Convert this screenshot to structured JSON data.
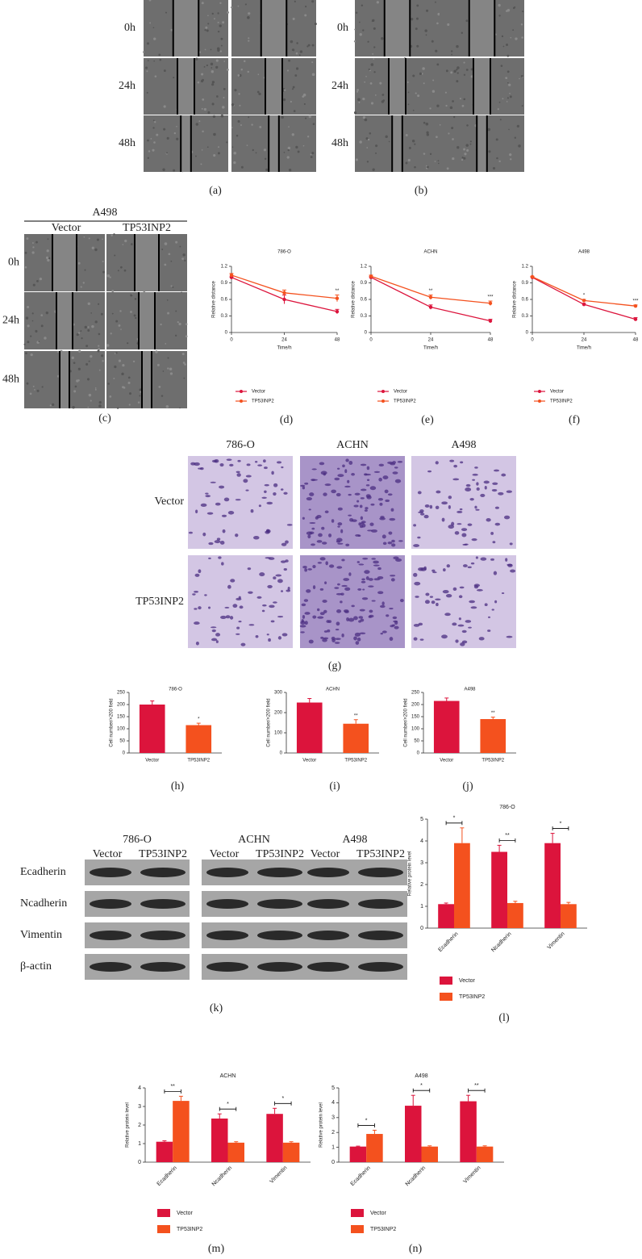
{
  "wound": {
    "a": {
      "rows": [
        "0h",
        "24h",
        "48h"
      ],
      "label": "(a)"
    },
    "b": {
      "rows": [
        "0h",
        "24h",
        "48h"
      ],
      "label": "(b)"
    },
    "c": {
      "title": "A498",
      "columns": [
        "Vector",
        "TP53INP2"
      ],
      "rows": [
        "0h",
        "24h",
        "48h"
      ],
      "label": "(c)"
    }
  },
  "transwell": {
    "columns": [
      "786-O",
      "ACHN",
      "A498"
    ],
    "rows": [
      "Vector",
      "TP53INP2"
    ],
    "label": "(g)"
  },
  "blot": {
    "groups": [
      {
        "title": "786-O",
        "columns": [
          "Vector",
          "TP53INP2"
        ]
      },
      {
        "title": "ACHN",
        "columns": [
          "Vector",
          "TP53INP2"
        ]
      },
      {
        "title": "A498",
        "columns": [
          "Vector",
          "TP53INP2"
        ]
      }
    ],
    "rows": [
      "Ecadherin",
      "Ncadherin",
      "Vimentin",
      "β-actin"
    ],
    "label": "(k)"
  },
  "chart_data": [
    {
      "type": "line",
      "title": "786-O",
      "label": "(d)",
      "xlabel": "Time/h",
      "ylabel": "Relative distance",
      "x": [
        0,
        24,
        48
      ],
      "xlim": [
        0,
        48
      ],
      "xticks": [
        0,
        24,
        48
      ],
      "ylim": [
        0,
        1.2
      ],
      "yticks": [
        0,
        0.3,
        0.6,
        0.9,
        1.2
      ],
      "series": [
        {
          "name": "Vector",
          "color": "#dc143c",
          "values": [
            1.0,
            0.6,
            0.38
          ],
          "errors": [
            0.01,
            0.08,
            0.04
          ]
        },
        {
          "name": "TP53INP2",
          "color": "#f4511e",
          "values": [
            1.04,
            0.72,
            0.62
          ],
          "errors": [
            0.03,
            0.05,
            0.06
          ]
        }
      ],
      "annotations": [
        null,
        null,
        "**"
      ]
    },
    {
      "type": "line",
      "title": "ACHN",
      "label": "(e)",
      "xlabel": "Time/h",
      "ylabel": "Relative distance",
      "x": [
        0,
        24,
        48
      ],
      "xlim": [
        0,
        48
      ],
      "xticks": [
        0,
        24,
        48
      ],
      "ylim": [
        0,
        1.2
      ],
      "yticks": [
        0,
        0.3,
        0.6,
        0.9,
        1.2
      ],
      "series": [
        {
          "name": "Vector",
          "color": "#dc143c",
          "values": [
            1.0,
            0.46,
            0.21
          ],
          "errors": [
            0.01,
            0.04,
            0.03
          ]
        },
        {
          "name": "TP53INP2",
          "color": "#f4511e",
          "values": [
            1.02,
            0.64,
            0.53
          ],
          "errors": [
            0.02,
            0.04,
            0.04
          ]
        }
      ],
      "annotations": [
        null,
        "**",
        "***"
      ]
    },
    {
      "type": "line",
      "title": "A498",
      "label": "(f)",
      "xlabel": "Time/h",
      "ylabel": "Relative distance",
      "x": [
        0,
        24,
        48
      ],
      "xlim": [
        0,
        48
      ],
      "xticks": [
        0,
        24,
        48
      ],
      "ylim": [
        0,
        1.2
      ],
      "yticks": [
        0,
        0.3,
        0.6,
        0.9,
        1.2
      ],
      "series": [
        {
          "name": "Vector",
          "color": "#dc143c",
          "values": [
            1.0,
            0.51,
            0.24
          ],
          "errors": [
            0.01,
            0.02,
            0.03
          ]
        },
        {
          "name": "TP53INP2",
          "color": "#f4511e",
          "values": [
            1.01,
            0.58,
            0.48
          ],
          "errors": [
            0.01,
            0.02,
            0.02
          ]
        }
      ],
      "annotations": [
        null,
        "*",
        "***"
      ]
    },
    {
      "type": "bar",
      "title": "786-O",
      "label": "(h)",
      "ylabel": "Cell number/×200 field",
      "categories": [
        "Vector",
        "TP53INP2"
      ],
      "values": [
        200,
        115
      ],
      "errors": [
        15,
        8
      ],
      "colors": [
        "#dc143c",
        "#f4511e"
      ],
      "ylim": [
        0,
        250
      ],
      "yticks": [
        0,
        50,
        100,
        150,
        200,
        250
      ],
      "annotations": [
        null,
        "*"
      ]
    },
    {
      "type": "bar",
      "title": "ACHN",
      "label": "(i)",
      "ylabel": "Cell number/×200 field",
      "categories": [
        "Vector",
        "TP53INP2"
      ],
      "values": [
        250,
        145
      ],
      "errors": [
        20,
        20
      ],
      "colors": [
        "#dc143c",
        "#f4511e"
      ],
      "ylim": [
        0,
        300
      ],
      "yticks": [
        0,
        100,
        200,
        300
      ],
      "annotations": [
        null,
        "**"
      ]
    },
    {
      "type": "bar",
      "title": "A498",
      "label": "(j)",
      "ylabel": "Cell number/×200 field",
      "categories": [
        "Vector",
        "TP53INP2"
      ],
      "values": [
        215,
        140
      ],
      "errors": [
        12,
        8
      ],
      "colors": [
        "#dc143c",
        "#f4511e"
      ],
      "ylim": [
        0,
        250
      ],
      "yticks": [
        0,
        50,
        100,
        150,
        200,
        250
      ],
      "annotations": [
        null,
        "**"
      ]
    },
    {
      "type": "grouped_bar",
      "title": "786-O",
      "label": "(l)",
      "ylabel": "Relative protein level",
      "categories": [
        "Ecadherin",
        "Ncadherin",
        "Vimentin"
      ],
      "ylim": [
        0,
        5
      ],
      "yticks": [
        0,
        1,
        2,
        3,
        4,
        5
      ],
      "series": [
        {
          "name": "Vector",
          "color": "#dc143c",
          "values": [
            1.1,
            3.5,
            3.9
          ],
          "errors": [
            0.05,
            0.3,
            0.45
          ]
        },
        {
          "name": "TP53INP2",
          "color": "#f4511e",
          "values": [
            3.9,
            1.15,
            1.1
          ],
          "errors": [
            0.7,
            0.08,
            0.08
          ]
        }
      ],
      "annotations": [
        "*",
        "**",
        "*"
      ]
    },
    {
      "type": "grouped_bar",
      "title": "ACHN",
      "label": "(m)",
      "ylabel": "Relative protein level",
      "categories": [
        "Ecadherin",
        "Ncadherin",
        "Vimentin"
      ],
      "ylim": [
        0,
        4
      ],
      "yticks": [
        0,
        1,
        2,
        3,
        4
      ],
      "series": [
        {
          "name": "Vector",
          "color": "#dc143c",
          "values": [
            1.1,
            2.35,
            2.6
          ],
          "errors": [
            0.05,
            0.25,
            0.3
          ]
        },
        {
          "name": "TP53INP2",
          "color": "#f4511e",
          "values": [
            3.3,
            1.05,
            1.05
          ],
          "errors": [
            0.25,
            0.05,
            0.05
          ]
        }
      ],
      "annotations": [
        "**",
        "*",
        "*"
      ]
    },
    {
      "type": "grouped_bar",
      "title": "A498",
      "label": "(n)",
      "ylabel": "Relative protein level",
      "categories": [
        "Ecadherin",
        "Ncadherin",
        "Vimentin"
      ],
      "ylim": [
        0,
        5
      ],
      "yticks": [
        0,
        1,
        2,
        3,
        4,
        5
      ],
      "series": [
        {
          "name": "Vector",
          "color": "#dc143c",
          "values": [
            1.05,
            3.8,
            4.1
          ],
          "errors": [
            0.03,
            0.7,
            0.4
          ]
        },
        {
          "name": "TP53INP2",
          "color": "#f4511e",
          "values": [
            1.9,
            1.05,
            1.05
          ],
          "errors": [
            0.25,
            0.05,
            0.05
          ]
        }
      ],
      "annotations": [
        "*",
        "*",
        "**"
      ]
    }
  ]
}
